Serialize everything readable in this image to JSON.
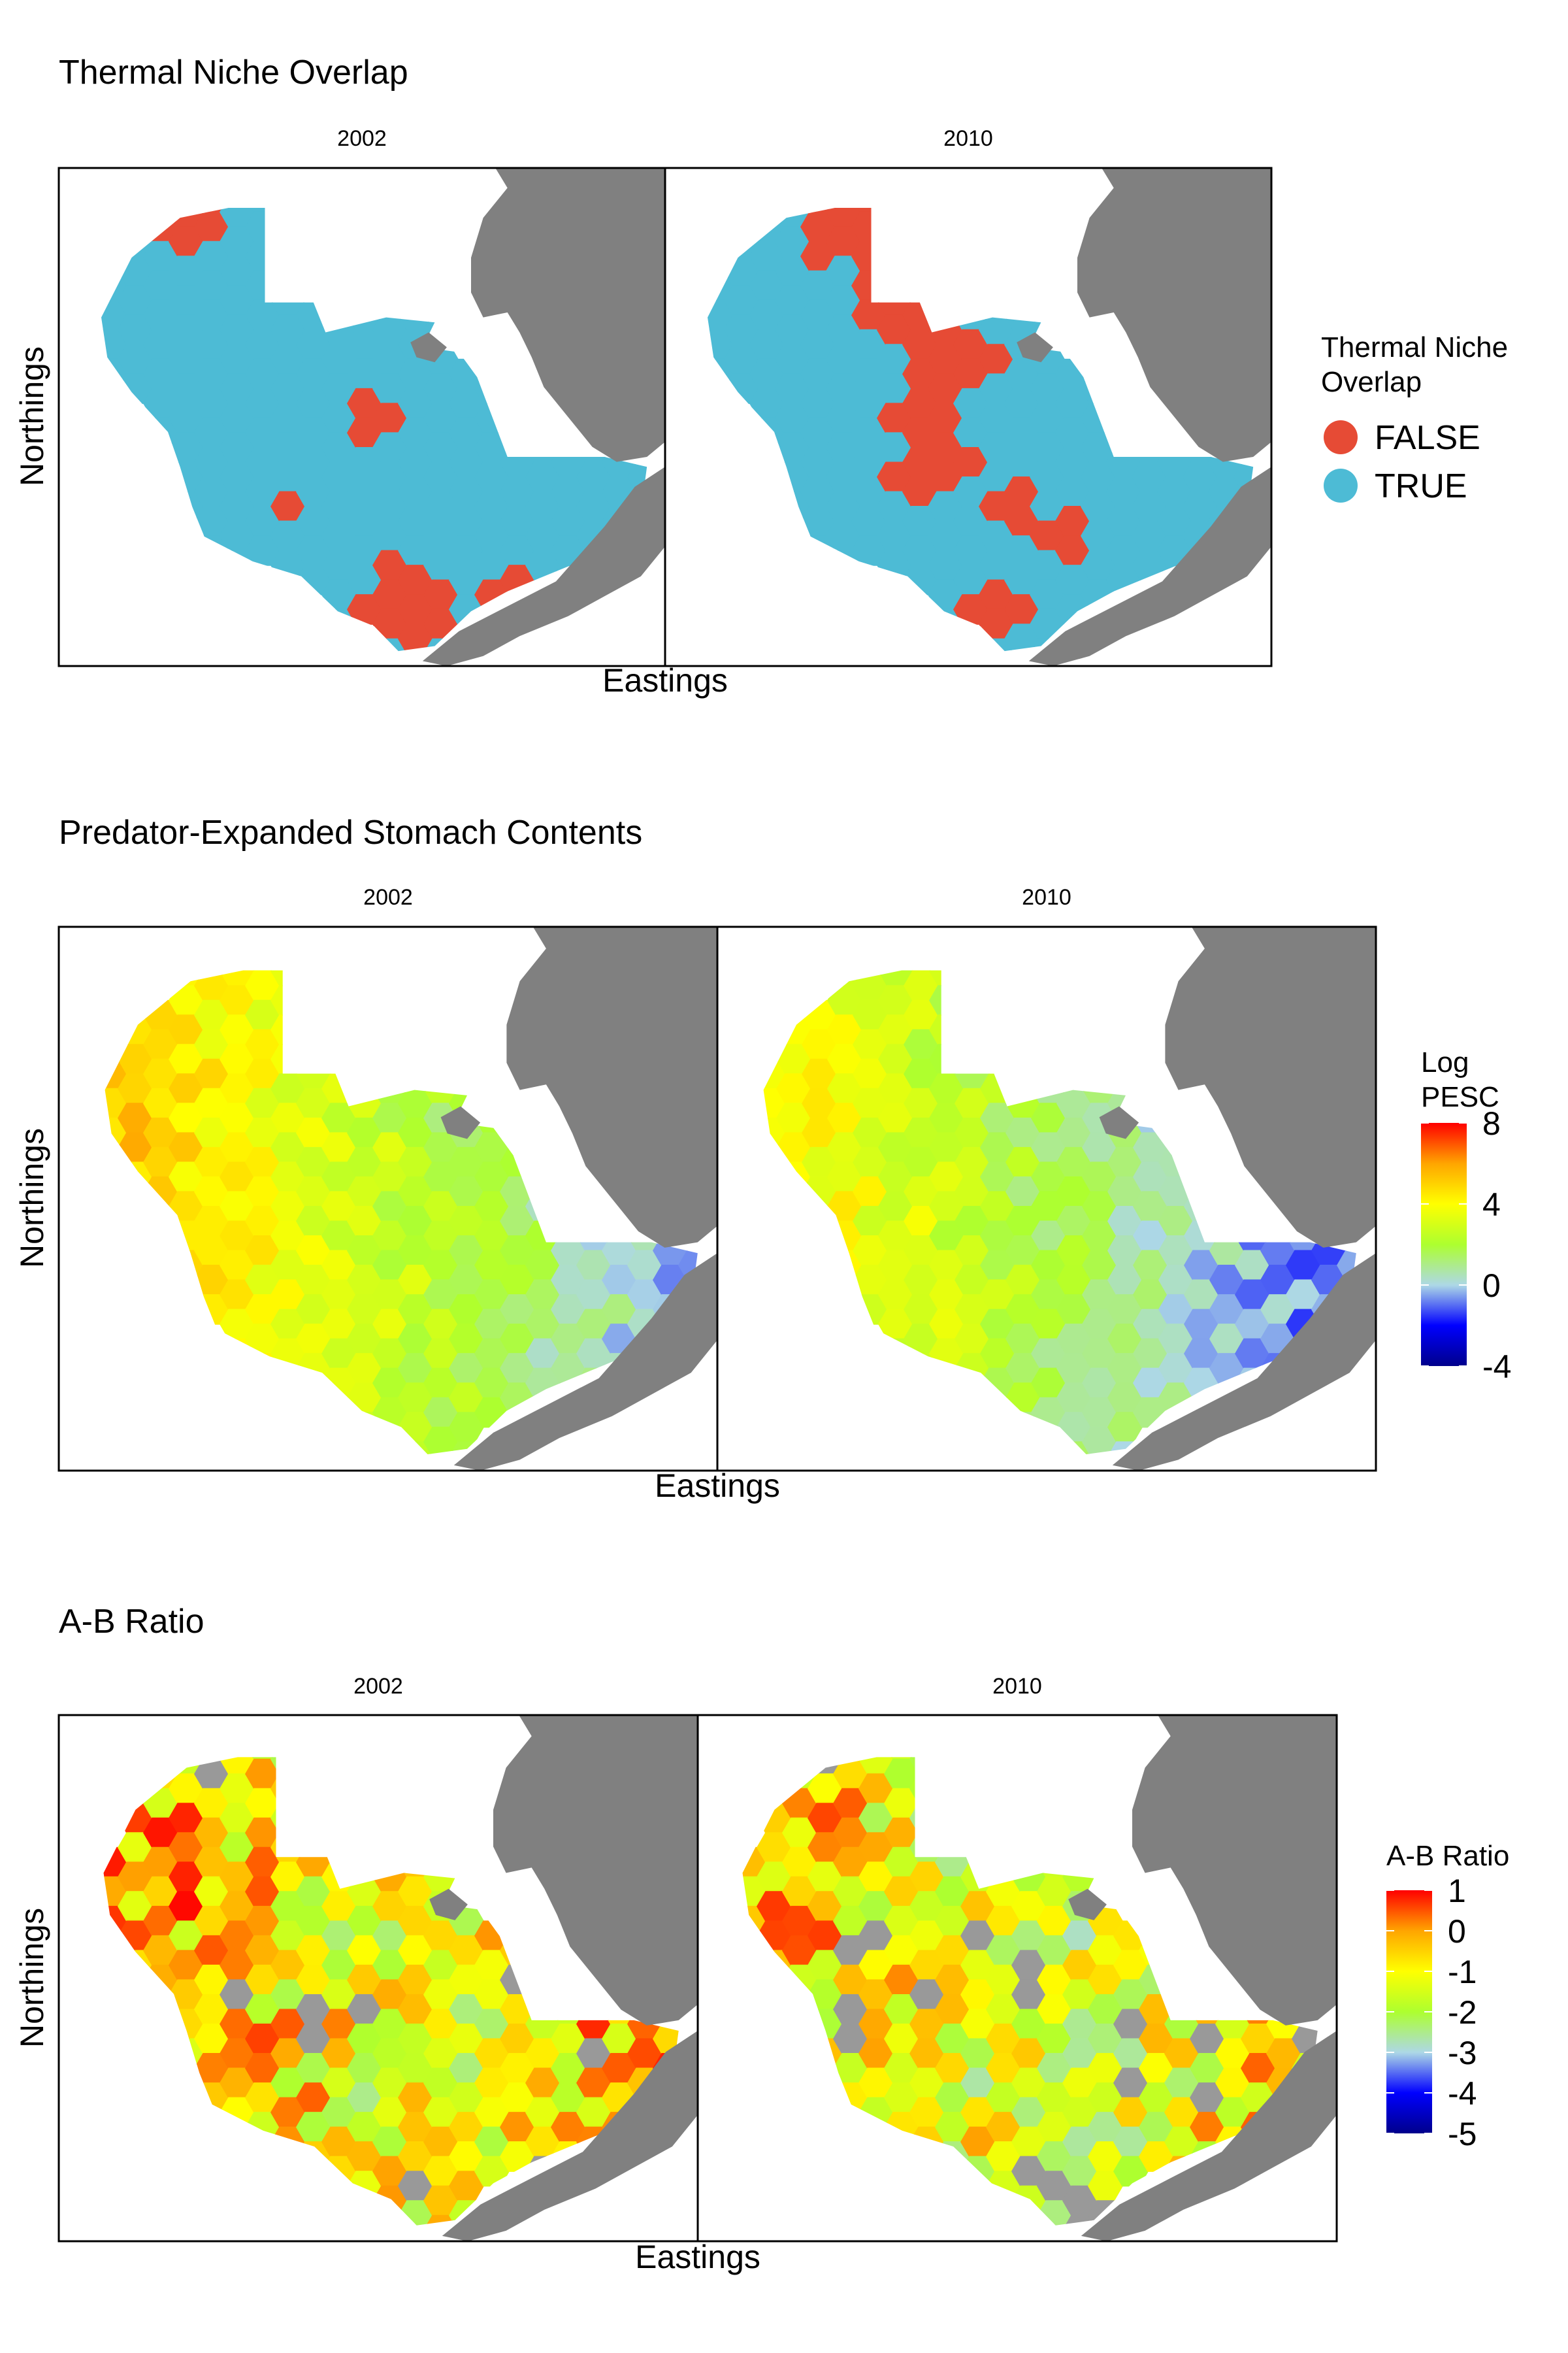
{
  "chart_data": [
    {
      "type": "map",
      "title": "Thermal Niche Overlap",
      "xlabel": "Eastings",
      "ylabel": "Northings",
      "facets": [
        "2002",
        "2010"
      ],
      "legend": {
        "title_lines": [
          "Thermal Niche",
          "Overlap"
        ],
        "placement": "right",
        "entries": [
          {
            "label": "FALSE",
            "color": "#e64b35"
          },
          {
            "label": "TRUE",
            "color": "#4dbbd5"
          }
        ]
      }
    },
    {
      "type": "map",
      "title": "Predator-Expanded Stomach Contents",
      "xlabel": "Eastings",
      "ylabel": "Northings",
      "facets": [
        "2002",
        "2010"
      ],
      "legend": {
        "title_lines": [
          "Log",
          "PESC"
        ],
        "placement": "right",
        "ticks": [
          "8",
          "4",
          "0",
          "-4"
        ],
        "range": [
          -4,
          8
        ],
        "colors": [
          "#00008b",
          "#0000ff",
          "#add8e6",
          "#adff2f",
          "#ffff00",
          "#ffa500",
          "#ff0000"
        ]
      }
    },
    {
      "type": "map",
      "title": "A-B Ratio",
      "xlabel": "Eastings",
      "ylabel": "Northings",
      "facets": [
        "2002",
        "2010"
      ],
      "legend": {
        "title_lines": [
          "A-B Ratio"
        ],
        "placement": "right",
        "ticks": [
          "1",
          "0",
          "-1",
          "-2",
          "-3",
          "-4",
          "-5"
        ],
        "range": [
          -5,
          1
        ],
        "colors": [
          "#00008b",
          "#0000ff",
          "#add8e6",
          "#adff2f",
          "#ffff00",
          "#ffa500",
          "#ff0000"
        ]
      }
    }
  ],
  "colors": {
    "land": "#808080",
    "false": "#e64b35",
    "true": "#4dbbd5",
    "na": "#999999"
  }
}
